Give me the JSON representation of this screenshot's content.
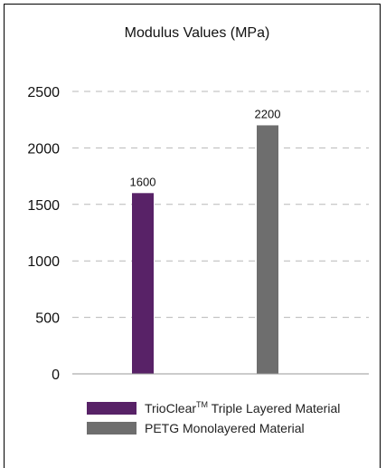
{
  "chart_data": {
    "type": "bar",
    "title": "Modulus Values (MPa)",
    "categories": [
      "TrioClear™ Triple Layered Material",
      "PETG Monolayered Material"
    ],
    "values": [
      1600,
      2200
    ],
    "data_labels": [
      "1600",
      "2200"
    ],
    "colors": [
      "#582267",
      "#6e6e6e"
    ],
    "ylim": [
      0,
      2500
    ],
    "yticks": [
      0,
      500,
      1000,
      1500,
      2000,
      2500
    ],
    "grid": "dashed-horizontal",
    "legend_placement": "bottom",
    "legend": [
      {
        "label_main": "TrioClear",
        "label_mark": "TM",
        "label_rest": " Triple Layered Material",
        "color": "#582267"
      },
      {
        "label": "PETG Monolayered Material",
        "color": "#6e6e6e"
      }
    ]
  }
}
